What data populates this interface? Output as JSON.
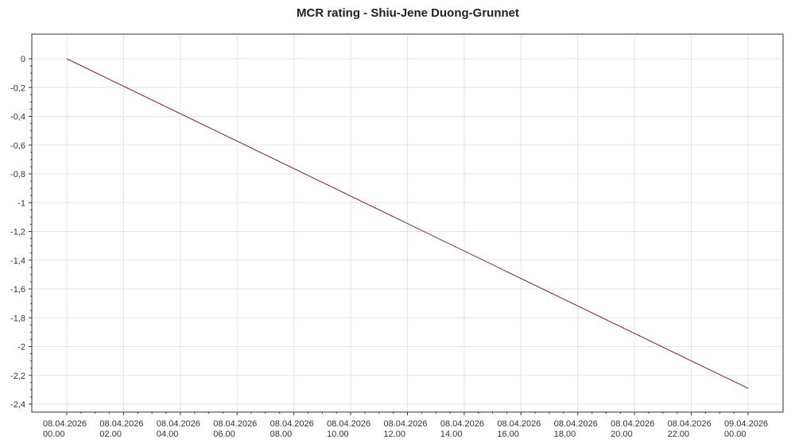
{
  "chart_data": {
    "type": "line",
    "title": "MCR rating - Shiu-Jene Duong-Grunnet",
    "xlabel": "",
    "ylabel": "",
    "xlim": [
      "2026-04-08T00:00",
      "2026-04-09T00:00"
    ],
    "ylim": [
      -2.4,
      0
    ],
    "grid": true,
    "legend": "none",
    "line_color": "#8b1a1a",
    "x_ticks": [
      {
        "value": "2026-04-08T00:00",
        "date": "08.04.2026",
        "time": "00.00"
      },
      {
        "value": "2026-04-08T02:00",
        "date": "08.04.2026",
        "time": "02.00"
      },
      {
        "value": "2026-04-08T04:00",
        "date": "08.04.2026",
        "time": "04.00"
      },
      {
        "value": "2026-04-08T06:00",
        "date": "08.04.2026",
        "time": "06.00"
      },
      {
        "value": "2026-04-08T08:00",
        "date": "08.04.2026",
        "time": "08.00"
      },
      {
        "value": "2026-04-08T10:00",
        "date": "08.04.2026",
        "time": "10.00"
      },
      {
        "value": "2026-04-08T12:00",
        "date": "08.04.2026",
        "time": "12.00"
      },
      {
        "value": "2026-04-08T14:00",
        "date": "08.04.2026",
        "time": "14.00"
      },
      {
        "value": "2026-04-08T16:00",
        "date": "08.04.2026",
        "time": "16.00"
      },
      {
        "value": "2026-04-08T18:00",
        "date": "08.04.2026",
        "time": "18.00"
      },
      {
        "value": "2026-04-08T20:00",
        "date": "08.04.2026",
        "time": "20.00"
      },
      {
        "value": "2026-04-08T22:00",
        "date": "08.04.2026",
        "time": "22.00"
      },
      {
        "value": "2026-04-09T00:00",
        "date": "09.04.2026",
        "time": "00.00"
      }
    ],
    "y_ticks": [
      {
        "value": 0,
        "label": "0"
      },
      {
        "value": -0.2,
        "label": "-0,2"
      },
      {
        "value": -0.4,
        "label": "-0,4"
      },
      {
        "value": -0.6,
        "label": "-0,6"
      },
      {
        "value": -0.8,
        "label": "-0,8"
      },
      {
        "value": -1.0,
        "label": "-1"
      },
      {
        "value": -1.2,
        "label": "-1,2"
      },
      {
        "value": -1.4,
        "label": "-1,4"
      },
      {
        "value": -1.6,
        "label": "-1,6"
      },
      {
        "value": -1.8,
        "label": "-1,8"
      },
      {
        "value": -2.0,
        "label": "-2"
      },
      {
        "value": -2.2,
        "label": "-2,2"
      },
      {
        "value": -2.4,
        "label": "-2,4"
      }
    ],
    "series": [
      {
        "points": [
          {
            "x": "2026-04-08T00:00",
            "y": 0
          },
          {
            "x": "2026-04-09T00:00",
            "y": -2.29
          }
        ]
      }
    ]
  }
}
